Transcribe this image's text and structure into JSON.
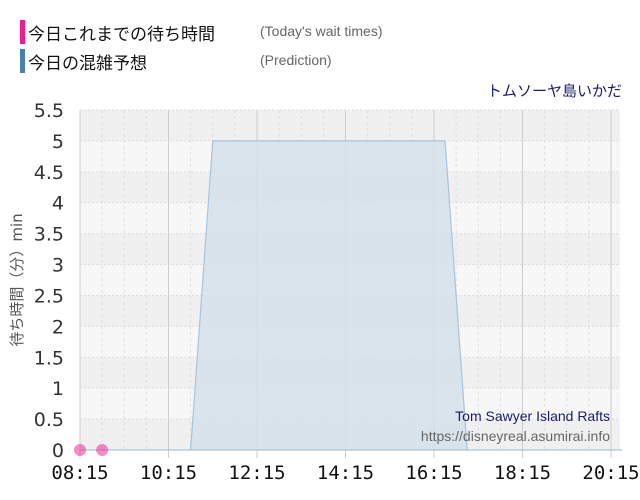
{
  "legend": [
    {
      "label": "今日これまでの待ち時間",
      "sub": "(Today's wait times)",
      "color": "#ee1e8c"
    },
    {
      "label": "今日の混雑予想",
      "sub": "(Prediction)",
      "color": "#4a7fb0"
    }
  ],
  "attraction_jp": "トムソーヤ島いかだ",
  "chart_data": {
    "type": "area",
    "title": "Tom Sawyer Island Rafts",
    "source": "https://disneyreal.asumirai.info",
    "ylabel": "待ち時間（分）min",
    "ylim": [
      0,
      5.5
    ],
    "yticks": [
      "0",
      "0.5",
      "1",
      "1.5",
      "2",
      "2.5",
      "3",
      "3.5",
      "4",
      "4.5",
      "5",
      "5.5"
    ],
    "xticks": [
      "08:15",
      "10:15",
      "12:15",
      "14:15",
      "16:15",
      "18:15",
      "20:15"
    ],
    "xlim": [
      "08:15",
      "20:30"
    ],
    "grid": true,
    "series": [
      {
        "name": "今日の混雑予想",
        "type": "area",
        "color": "#4a7fb0",
        "x": [
          "08:15",
          "10:45",
          "11:15",
          "16:30",
          "17:00",
          "20:30"
        ],
        "values": [
          0,
          0,
          5,
          5,
          0,
          0
        ]
      },
      {
        "name": "今日これまでの待ち時間",
        "type": "scatter",
        "color": "#ee1e8c",
        "x": [
          "08:15",
          "08:45"
        ],
        "values": [
          0,
          0
        ]
      }
    ]
  }
}
